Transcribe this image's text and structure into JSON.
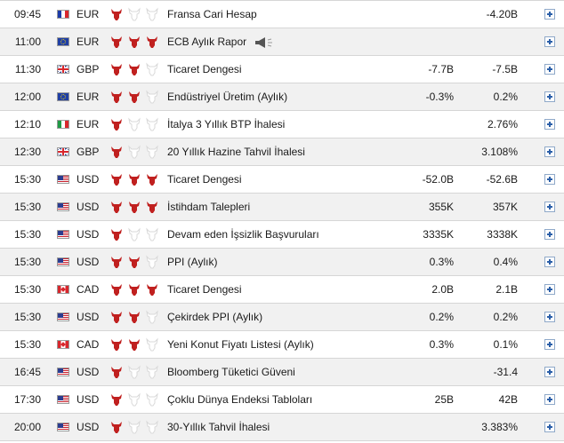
{
  "colors": {
    "bull_active": "#c0201f",
    "bull_inactive": "#d9d9d9",
    "row_alt": "#f1f1f1",
    "add_icon": "#2a5ea8"
  },
  "rows": [
    {
      "time": "09:45",
      "flag": "fr",
      "currency": "EUR",
      "importance": 1,
      "event": "Fransa Cari Hesap",
      "actual": "",
      "forecast": "-4.20B",
      "speech": false
    },
    {
      "time": "11:00",
      "flag": "eu",
      "currency": "EUR",
      "importance": 3,
      "event": "ECB Aylık Rapor",
      "actual": "",
      "forecast": "",
      "speech": true
    },
    {
      "time": "11:30",
      "flag": "gb",
      "currency": "GBP",
      "importance": 2,
      "event": "Ticaret Dengesi",
      "actual": "-7.7B",
      "forecast": "-7.5B",
      "speech": false
    },
    {
      "time": "12:00",
      "flag": "eu",
      "currency": "EUR",
      "importance": 2,
      "event": "Endüstriyel Üretim (Aylık)",
      "actual": "-0.3%",
      "forecast": "0.2%",
      "speech": false
    },
    {
      "time": "12:10",
      "flag": "it",
      "currency": "EUR",
      "importance": 1,
      "event": "İtalya 3 Yıllık BTP İhalesi",
      "actual": "",
      "forecast": "2.76%",
      "speech": false
    },
    {
      "time": "12:30",
      "flag": "gb",
      "currency": "GBP",
      "importance": 1,
      "event": "20 Yıllık Hazine Tahvil İhalesi",
      "actual": "",
      "forecast": "3.108%",
      "speech": false
    },
    {
      "time": "15:30",
      "flag": "us",
      "currency": "USD",
      "importance": 3,
      "event": "Ticaret Dengesi",
      "actual": "-52.0B",
      "forecast": "-52.6B",
      "speech": false
    },
    {
      "time": "15:30",
      "flag": "us",
      "currency": "USD",
      "importance": 3,
      "event": "İstihdam Talepleri",
      "actual": "355K",
      "forecast": "357K",
      "speech": false
    },
    {
      "time": "15:30",
      "flag": "us",
      "currency": "USD",
      "importance": 1,
      "event": "Devam eden İşsizlik Başvuruları",
      "actual": "3335K",
      "forecast": "3338K",
      "speech": false
    },
    {
      "time": "15:30",
      "flag": "us",
      "currency": "USD",
      "importance": 2,
      "event": "PPI (Aylık)",
      "actual": "0.3%",
      "forecast": "0.4%",
      "speech": false
    },
    {
      "time": "15:30",
      "flag": "ca",
      "currency": "CAD",
      "importance": 3,
      "event": "Ticaret Dengesi",
      "actual": "2.0B",
      "forecast": "2.1B",
      "speech": false
    },
    {
      "time": "15:30",
      "flag": "us",
      "currency": "USD",
      "importance": 2,
      "event": "Çekirdek PPI (Aylık)",
      "actual": "0.2%",
      "forecast": "0.2%",
      "speech": false
    },
    {
      "time": "15:30",
      "flag": "ca",
      "currency": "CAD",
      "importance": 2,
      "event": "Yeni Konut Fiyatı Listesi (Aylık)",
      "actual": "0.3%",
      "forecast": "0.1%",
      "speech": false
    },
    {
      "time": "16:45",
      "flag": "us",
      "currency": "USD",
      "importance": 1,
      "event": "Bloomberg Tüketici Güveni",
      "actual": "",
      "forecast": "-31.4",
      "speech": false
    },
    {
      "time": "17:30",
      "flag": "us",
      "currency": "USD",
      "importance": 1,
      "event": "Çoklu Dünya Endeksi Tabloları",
      "actual": "25B",
      "forecast": "42B",
      "speech": false
    },
    {
      "time": "20:00",
      "flag": "us",
      "currency": "USD",
      "importance": 1,
      "event": "30-Yıllık Tahvil İhalesi",
      "actual": "",
      "forecast": "3.383%",
      "speech": false
    }
  ]
}
